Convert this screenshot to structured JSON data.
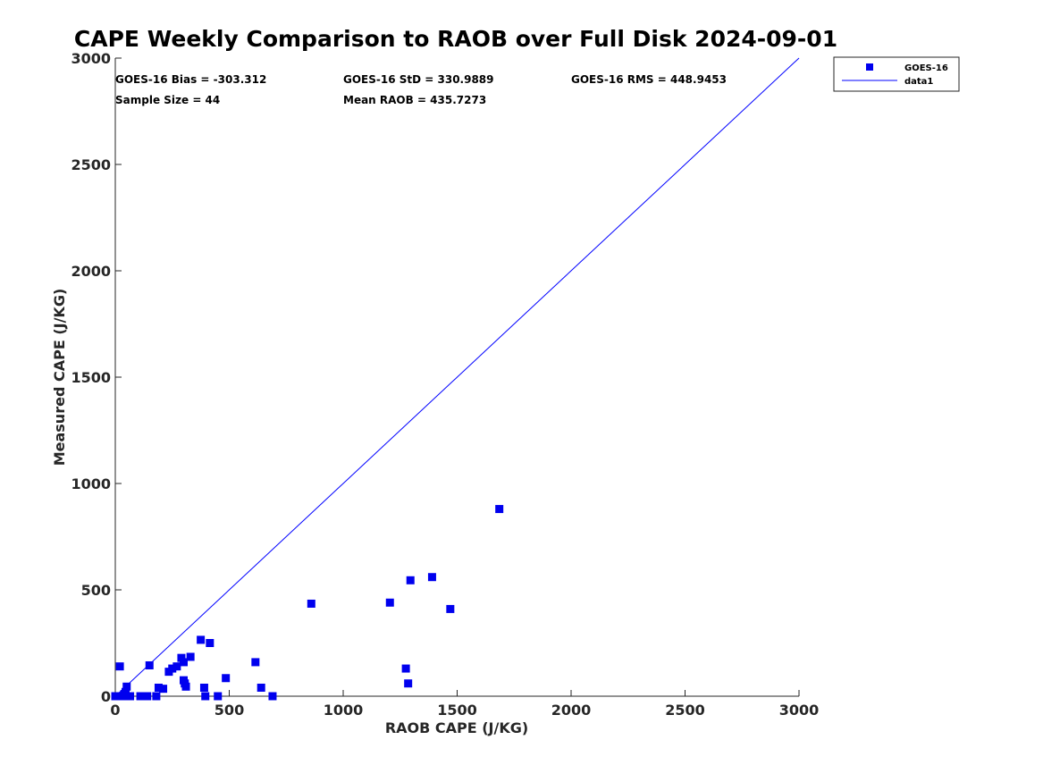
{
  "chart_data": {
    "type": "scatter",
    "title": "CAPE Weekly Comparison to RAOB over Full Disk 2024-09-01",
    "xlabel": "RAOB CAPE (J/KG)",
    "ylabel": "Measured CAPE (J/KG)",
    "xlim": [
      0,
      3000
    ],
    "ylim": [
      0,
      3000
    ],
    "xticks": [
      0,
      500,
      1000,
      1500,
      2000,
      2500,
      3000
    ],
    "yticks": [
      0,
      500,
      1000,
      1500,
      2000,
      2500,
      3000
    ],
    "grid": false,
    "legend_position": "top-right",
    "stats": {
      "bias": "GOES-16 Bias = -303.312",
      "std": "GOES-16 StD = 330.9889",
      "rms": "GOES-16 RMS = 448.9453",
      "sample_size": "Sample Size = 44",
      "mean_raob": "Mean RAOB = 435.7273"
    },
    "series": [
      {
        "name": "GOES-16",
        "kind": "scatter",
        "marker": "square",
        "color": "#0000ee",
        "points": [
          [
            0,
            0
          ],
          [
            10,
            0
          ],
          [
            20,
            140
          ],
          [
            25,
            0
          ],
          [
            35,
            0
          ],
          [
            40,
            10
          ],
          [
            45,
            20
          ],
          [
            50,
            45
          ],
          [
            55,
            0
          ],
          [
            65,
            0
          ],
          [
            110,
            0
          ],
          [
            140,
            0
          ],
          [
            150,
            145
          ],
          [
            190,
            40
          ],
          [
            210,
            35
          ],
          [
            235,
            115
          ],
          [
            250,
            130
          ],
          [
            270,
            140
          ],
          [
            290,
            180
          ],
          [
            300,
            160
          ],
          [
            300,
            75
          ],
          [
            305,
            60
          ],
          [
            310,
            45
          ],
          [
            330,
            185
          ],
          [
            375,
            265
          ],
          [
            390,
            40
          ],
          [
            395,
            0
          ],
          [
            415,
            250
          ],
          [
            450,
            0
          ],
          [
            485,
            85
          ],
          [
            615,
            160
          ],
          [
            640,
            40
          ],
          [
            690,
            0
          ],
          [
            860,
            435
          ],
          [
            1205,
            440
          ],
          [
            1275,
            130
          ],
          [
            1285,
            60
          ],
          [
            1295,
            545
          ],
          [
            1390,
            560
          ],
          [
            1470,
            410
          ],
          [
            1685,
            880
          ],
          [
            180,
            0
          ],
          [
            125,
            0
          ],
          [
            60,
            0
          ]
        ]
      },
      {
        "name": "data1",
        "kind": "line",
        "color": "#0000ff",
        "points": [
          [
            0,
            0
          ],
          [
            3000,
            3000
          ]
        ]
      }
    ]
  }
}
